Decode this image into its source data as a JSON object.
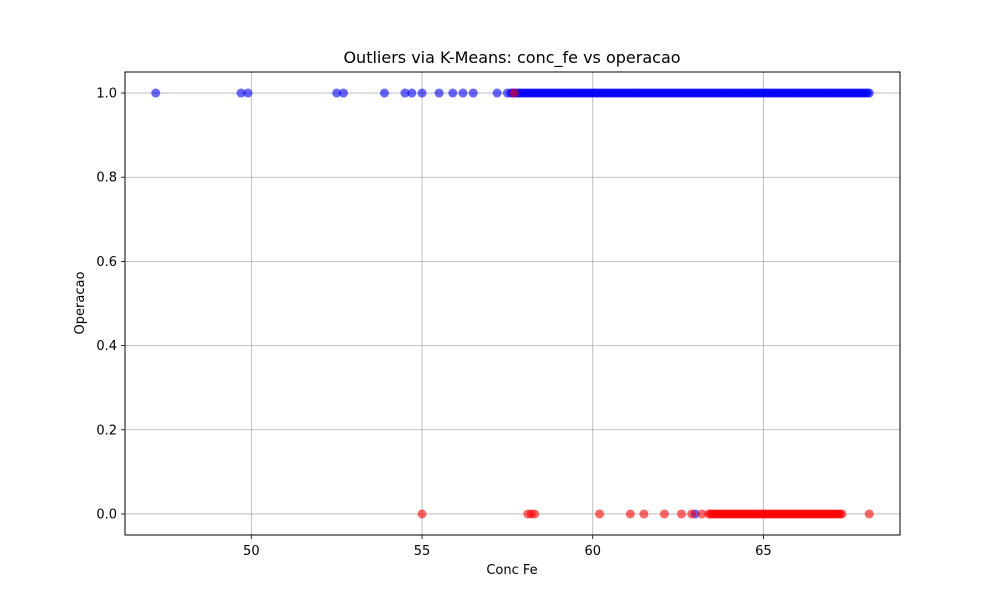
{
  "chart_data": {
    "type": "scatter",
    "title": "Outliers via K-Means: conc_fe vs operacao",
    "xlabel": "Conc Fe",
    "ylabel": "Operacao",
    "xlim": [
      46.3,
      69.0
    ],
    "ylim": [
      -0.05,
      1.05
    ],
    "xticks": [
      50,
      55,
      60,
      65
    ],
    "yticks": [
      0.0,
      0.2,
      0.4,
      0.6,
      0.8,
      1.0
    ],
    "xtick_labels": [
      "50",
      "55",
      "60",
      "65"
    ],
    "ytick_labels": [
      "0.0",
      "0.2",
      "0.4",
      "0.6",
      "0.8",
      "1.0"
    ],
    "grid": true,
    "legend": "none",
    "series": [
      {
        "color": "#0000ff",
        "opacity": 0.6,
        "points": [
          {
            "x": 47.2,
            "y": 1.0
          },
          {
            "x": 49.7,
            "y": 1.0
          },
          {
            "x": 49.9,
            "y": 1.0
          },
          {
            "x": 52.5,
            "y": 1.0
          },
          {
            "x": 52.7,
            "y": 1.0
          },
          {
            "x": 53.9,
            "y": 1.0
          },
          {
            "x": 54.5,
            "y": 1.0
          },
          {
            "x": 54.7,
            "y": 1.0
          },
          {
            "x": 55.0,
            "y": 1.0
          },
          {
            "x": 55.5,
            "y": 1.0
          },
          {
            "x": 55.9,
            "y": 1.0
          },
          {
            "x": 56.2,
            "y": 1.0
          },
          {
            "x": 56.5,
            "y": 1.0
          },
          {
            "x": 57.2,
            "y": 1.0
          },
          {
            "x": 57.5,
            "y": 1.0
          },
          {
            "x": 63.0,
            "y": 0.0
          }
        ],
        "dense_ranges": [
          {
            "x_start": 57.6,
            "x_end": 68.1,
            "y": 1.0
          }
        ]
      },
      {
        "color": "#ff0000",
        "opacity": 0.6,
        "points": [
          {
            "x": 57.7,
            "y": 1.0
          },
          {
            "x": 55.0,
            "y": 0.0
          },
          {
            "x": 58.1,
            "y": 0.0
          },
          {
            "x": 58.2,
            "y": 0.0
          },
          {
            "x": 58.3,
            "y": 0.0
          },
          {
            "x": 60.2,
            "y": 0.0
          },
          {
            "x": 61.1,
            "y": 0.0
          },
          {
            "x": 61.5,
            "y": 0.0
          },
          {
            "x": 62.1,
            "y": 0.0
          },
          {
            "x": 62.6,
            "y": 0.0
          },
          {
            "x": 62.9,
            "y": 0.0
          },
          {
            "x": 63.2,
            "y": 0.0
          },
          {
            "x": 68.1,
            "y": 0.0
          }
        ],
        "dense_ranges": [
          {
            "x_start": 63.4,
            "x_end": 67.3,
            "y": 0.0
          }
        ]
      }
    ]
  }
}
